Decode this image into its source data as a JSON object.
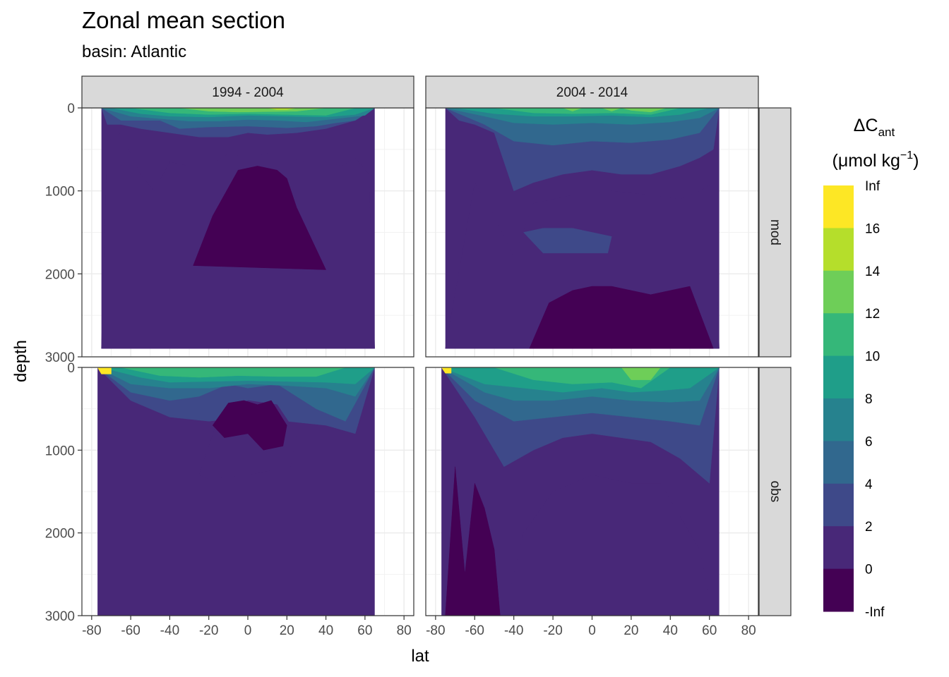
{
  "chart_data": {
    "type": "heatmap",
    "title": "Zonal mean section",
    "subtitle": "basin: Atlantic",
    "xlabel": "lat",
    "ylabel": "depth",
    "x_ticks": [
      -80,
      -60,
      -40,
      -20,
      0,
      20,
      40,
      60,
      80
    ],
    "x_tick_labels": [
      "-80",
      "-60",
      "-40",
      "-20",
      "0",
      "20",
      "40",
      "60",
      "80"
    ],
    "xlim": [
      -85,
      85
    ],
    "y_ticks": [
      0,
      1000,
      2000,
      3000
    ],
    "y_tick_labels": [
      "0",
      "1000",
      "2000",
      "3000"
    ],
    "ylim": [
      3000,
      0
    ],
    "y_reversed": true,
    "grid": true,
    "legend_position": "right",
    "facet_columns": [
      "1994 - 2004",
      "2004 - 2014"
    ],
    "facet_rows": [
      "mod",
      "obs"
    ],
    "legend": {
      "title_main": "ΔC",
      "title_sub": "ant",
      "unit_prefix": "(μmol kg",
      "unit_sup": "−1",
      "unit_suffix": ")",
      "breaks": [
        "Inf",
        "16",
        "14",
        "12",
        "10",
        "8",
        "6",
        "4",
        "2",
        "0",
        "-Inf"
      ],
      "colors": [
        "#fde725",
        "#b5de2b",
        "#6ece58",
        "#35b779",
        "#1f9e89",
        "#26828e",
        "#31688e",
        "#3e4989",
        "#482878",
        "#440154"
      ]
    },
    "panels": [
      {
        "column": "1994 - 2004",
        "row": "mod",
        "lat_range": [
          -75,
          65
        ],
        "bottom_depth": 2900,
        "layers": [
          {
            "bin": "2 - 4",
            "lat": [
              -75,
              -72,
              -65,
              -55,
              -40,
              -25,
              -10,
              0,
              10,
              25,
              40,
              55,
              65
            ],
            "depth": [
              0,
              200,
              200,
              250,
              300,
              350,
              350,
              300,
              320,
              300,
              250,
              150,
              0
            ]
          },
          {
            "bin": "0 - 2",
            "lat": [
              -75,
              -72,
              -65,
              -55,
              -48,
              -40,
              -30,
              -20,
              -10,
              0,
              10,
              20,
              30,
              40,
              48,
              55,
              62,
              65
            ],
            "depth": [
              2900,
              400,
              300,
              800,
              1000,
              650,
              700,
              700,
              550,
              600,
              550,
              600,
              650,
              650,
              700,
              600,
              800,
              2900
            ]
          },
          {
            "bin": "-Inf - 0",
            "lat": [
              -28,
              -18,
              -5,
              5,
              15,
              20,
              25,
              40
            ],
            "depth": [
              1900,
              1300,
              750,
              700,
              750,
              850,
              1200,
              1950
            ]
          },
          {
            "bin": "4 - 6",
            "lat": [
              -75,
              -65,
              -45,
              -35,
              -20,
              0,
              20,
              35,
              45,
              55,
              65
            ],
            "depth": [
              0,
              150,
              150,
              250,
              230,
              220,
              240,
              220,
              180,
              150,
              0
            ]
          },
          {
            "bin": "6 - 8",
            "lat": [
              -75,
              -60,
              -45,
              -30,
              -15,
              0,
              15,
              30,
              45,
              60,
              65
            ],
            "depth": [
              0,
              100,
              130,
              160,
              160,
              140,
              150,
              170,
              130,
              90,
              0
            ]
          },
          {
            "bin": "8 - 10",
            "lat": [
              -70,
              -55,
              -40,
              -20,
              0,
              20,
              40,
              55,
              65
            ],
            "depth": [
              0,
              70,
              100,
              110,
              90,
              100,
              110,
              80,
              0
            ]
          },
          {
            "bin": "10 - 12",
            "lat": [
              -60,
              -40,
              -20,
              0,
              20,
              40,
              55
            ],
            "depth": [
              0,
              60,
              80,
              70,
              80,
              90,
              0
            ]
          },
          {
            "bin": "12 - 14",
            "lat": [
              -35,
              -20,
              -5,
              10,
              25,
              40
            ],
            "depth": [
              0,
              40,
              50,
              45,
              40,
              0
            ]
          },
          {
            "bin": "14 - 16",
            "lat": [
              10,
              15,
              20,
              25
            ],
            "depth": [
              0,
              20,
              20,
              0
            ]
          }
        ]
      },
      {
        "column": "2004 - 2014",
        "row": "mod",
        "lat_range": [
          -75,
          65
        ],
        "bottom_depth": 2900,
        "layers": [
          {
            "bin": "2 - 4",
            "lat": [
              -75,
              -68,
              -60,
              -50,
              -40,
              -30,
              -15,
              0,
              15,
              30,
              45,
              55,
              62,
              65
            ],
            "depth": [
              0,
              150,
              200,
              300,
              1000,
              900,
              800,
              750,
              800,
              800,
              700,
              600,
              500,
              0
            ]
          },
          {
            "bin": "0 - 2",
            "lat": [
              -75,
              -60,
              -50,
              -40,
              -30,
              -10,
              10,
              30,
              45,
              55,
              62,
              65
            ],
            "depth": [
              2900,
              900,
              1300,
              1800,
              1150,
              1050,
              1000,
              1050,
              1100,
              1000,
              900,
              2900
            ]
          },
          {
            "bin": "2 - 4",
            "lat": [
              -35,
              -25,
              -10,
              0,
              10,
              8,
              -10,
              -25
            ],
            "depth": [
              1500,
              1450,
              1450,
              1500,
              1550,
              1750,
              1750,
              1750
            ]
          },
          {
            "bin": "-Inf - 0",
            "lat": [
              -32,
              -22,
              -10,
              0,
              10,
              20,
              30,
              40,
              50,
              62
            ],
            "depth": [
              2900,
              2350,
              2200,
              2150,
              2150,
              2200,
              2250,
              2200,
              2150,
              2900
            ]
          },
          {
            "bin": "4 - 6",
            "lat": [
              -75,
              -55,
              -40,
              -20,
              0,
              20,
              40,
              55,
              65
            ],
            "depth": [
              0,
              200,
              400,
              450,
              400,
              420,
              380,
              300,
              0
            ]
          },
          {
            "bin": "6 - 8",
            "lat": [
              -75,
              -55,
              -40,
              -20,
              0,
              20,
              40,
              55,
              65
            ],
            "depth": [
              0,
              100,
              180,
              200,
              180,
              200,
              170,
              120,
              0
            ]
          },
          {
            "bin": "8 - 10",
            "lat": [
              -70,
              -50,
              -30,
              -10,
              10,
              30,
              45,
              60
            ],
            "depth": [
              0,
              70,
              100,
              100,
              90,
              110,
              80,
              0
            ]
          },
          {
            "bin": "10 - 12",
            "lat": [
              -50,
              -30,
              -10,
              10,
              30,
              45
            ],
            "depth": [
              0,
              60,
              70,
              60,
              80,
              0
            ]
          },
          {
            "bin": "12 - 14",
            "lat": [
              -15,
              -10,
              -5,
              5,
              10,
              15,
              20,
              30,
              38
            ],
            "depth": [
              0,
              40,
              0,
              0,
              40,
              0,
              30,
              50,
              0
            ]
          }
        ]
      },
      {
        "column": "1994 - 2004",
        "row": "obs",
        "lat_range": [
          -77,
          65
        ],
        "bottom_depth": 3000,
        "layers": [
          {
            "bin": "2 - 4",
            "lat": [
              -77,
              -60,
              -40,
              -20,
              0,
              20,
              40,
              55,
              65
            ],
            "depth": [
              0,
              400,
              600,
              650,
              600,
              650,
              700,
              800,
              0
            ]
          },
          {
            "bin": "0 - 2",
            "lat": [
              -25,
              -15,
              0,
              15,
              25,
              22,
              0,
              -20
            ],
            "depth": [
              1300,
              600,
              400,
              450,
              800,
              1200,
              1300,
              1350
            ]
          },
          {
            "bin": "-Inf - 0",
            "lat": [
              -18,
              -10,
              -2,
              5,
              12,
              20,
              18,
              8,
              0,
              -12
            ],
            "depth": [
              700,
              430,
              400,
              450,
              400,
              700,
              950,
              1000,
              800,
              850
            ]
          },
          {
            "bin": "4 - 6",
            "lat": [
              -77,
              -60,
              -40,
              -25,
              -10,
              0,
              15,
              35,
              50,
              65
            ],
            "depth": [
              0,
              300,
              400,
              350,
              200,
              250,
              200,
              500,
              650,
              0
            ]
          },
          {
            "bin": "6 - 8",
            "lat": [
              -77,
              -60,
              -40,
              -20,
              0,
              20,
              40,
              55,
              65
            ],
            "depth": [
              0,
              200,
              250,
              250,
              200,
              220,
              250,
              350,
              0
            ]
          },
          {
            "bin": "8 - 10",
            "lat": [
              -75,
              -55,
              -40,
              -20,
              0,
              20,
              40,
              55,
              65
            ],
            "depth": [
              0,
              120,
              180,
              170,
              160,
              170,
              180,
              200,
              0
            ]
          },
          {
            "bin": "10 - 12",
            "lat": [
              -65,
              -45,
              -25,
              -5,
              15,
              35,
              50
            ],
            "depth": [
              0,
              100,
              120,
              100,
              110,
              110,
              0
            ]
          },
          {
            "bin": "16 - Inf",
            "lat": [
              -77,
              -75,
              -70,
              -70
            ],
            "depth": [
              0,
              80,
              80,
              0
            ]
          }
        ]
      },
      {
        "column": "2004 - 2014",
        "row": "obs",
        "lat_range": [
          -77,
          65
        ],
        "bottom_depth": 3000,
        "layers": [
          {
            "bin": "2 - 4",
            "lat": [
              -77,
              -60,
              -45,
              -30,
              -15,
              0,
              15,
              30,
              45,
              60,
              65
            ],
            "depth": [
              0,
              600,
              1200,
              1000,
              850,
              800,
              850,
              900,
              1100,
              1400,
              0
            ]
          },
          {
            "bin": "0 - 2",
            "lat": [
              -45,
              -35,
              -20,
              0,
              20,
              35,
              45,
              55,
              62
            ],
            "depth": [
              3000,
              2000,
              1500,
              1300,
              1400,
              1400,
              1800,
              2200,
              3000
            ]
          },
          {
            "bin": "-Inf - 0",
            "lat": [
              -75,
              -70,
              -65,
              -60,
              -55,
              -50,
              -47,
              -52
            ],
            "depth": [
              3000,
              1200,
              2500,
              1400,
              1700,
              2200,
              3000,
              3000
            ]
          },
          {
            "bin": "4 - 6",
            "lat": [
              -77,
              -60,
              -40,
              -20,
              0,
              20,
              40,
              55,
              65
            ],
            "depth": [
              0,
              400,
              650,
              600,
              550,
              600,
              650,
              700,
              0
            ]
          },
          {
            "bin": "6 - 8",
            "lat": [
              -77,
              -55,
              -40,
              -20,
              0,
              20,
              40,
              55,
              65
            ],
            "depth": [
              0,
              300,
              400,
              400,
              350,
              400,
              420,
              400,
              0
            ]
          },
          {
            "bin": "8 - 10",
            "lat": [
              -77,
              -55,
              -35,
              -15,
              5,
              20,
              35,
              50,
              65
            ],
            "depth": [
              0,
              200,
              250,
              300,
              250,
              300,
              280,
              250,
              0
            ]
          },
          {
            "bin": "10 - 12",
            "lat": [
              -50,
              -30,
              -10,
              10,
              25,
              40
            ],
            "depth": [
              0,
              150,
              200,
              180,
              250,
              0
            ]
          },
          {
            "bin": "12 - 14",
            "lat": [
              15,
              20,
              30,
              35
            ],
            "depth": [
              0,
              150,
              150,
              0
            ]
          },
          {
            "bin": "16 - Inf",
            "lat": [
              -77,
              -75,
              -72,
              -72
            ],
            "depth": [
              0,
              70,
              70,
              0
            ]
          }
        ]
      }
    ]
  }
}
